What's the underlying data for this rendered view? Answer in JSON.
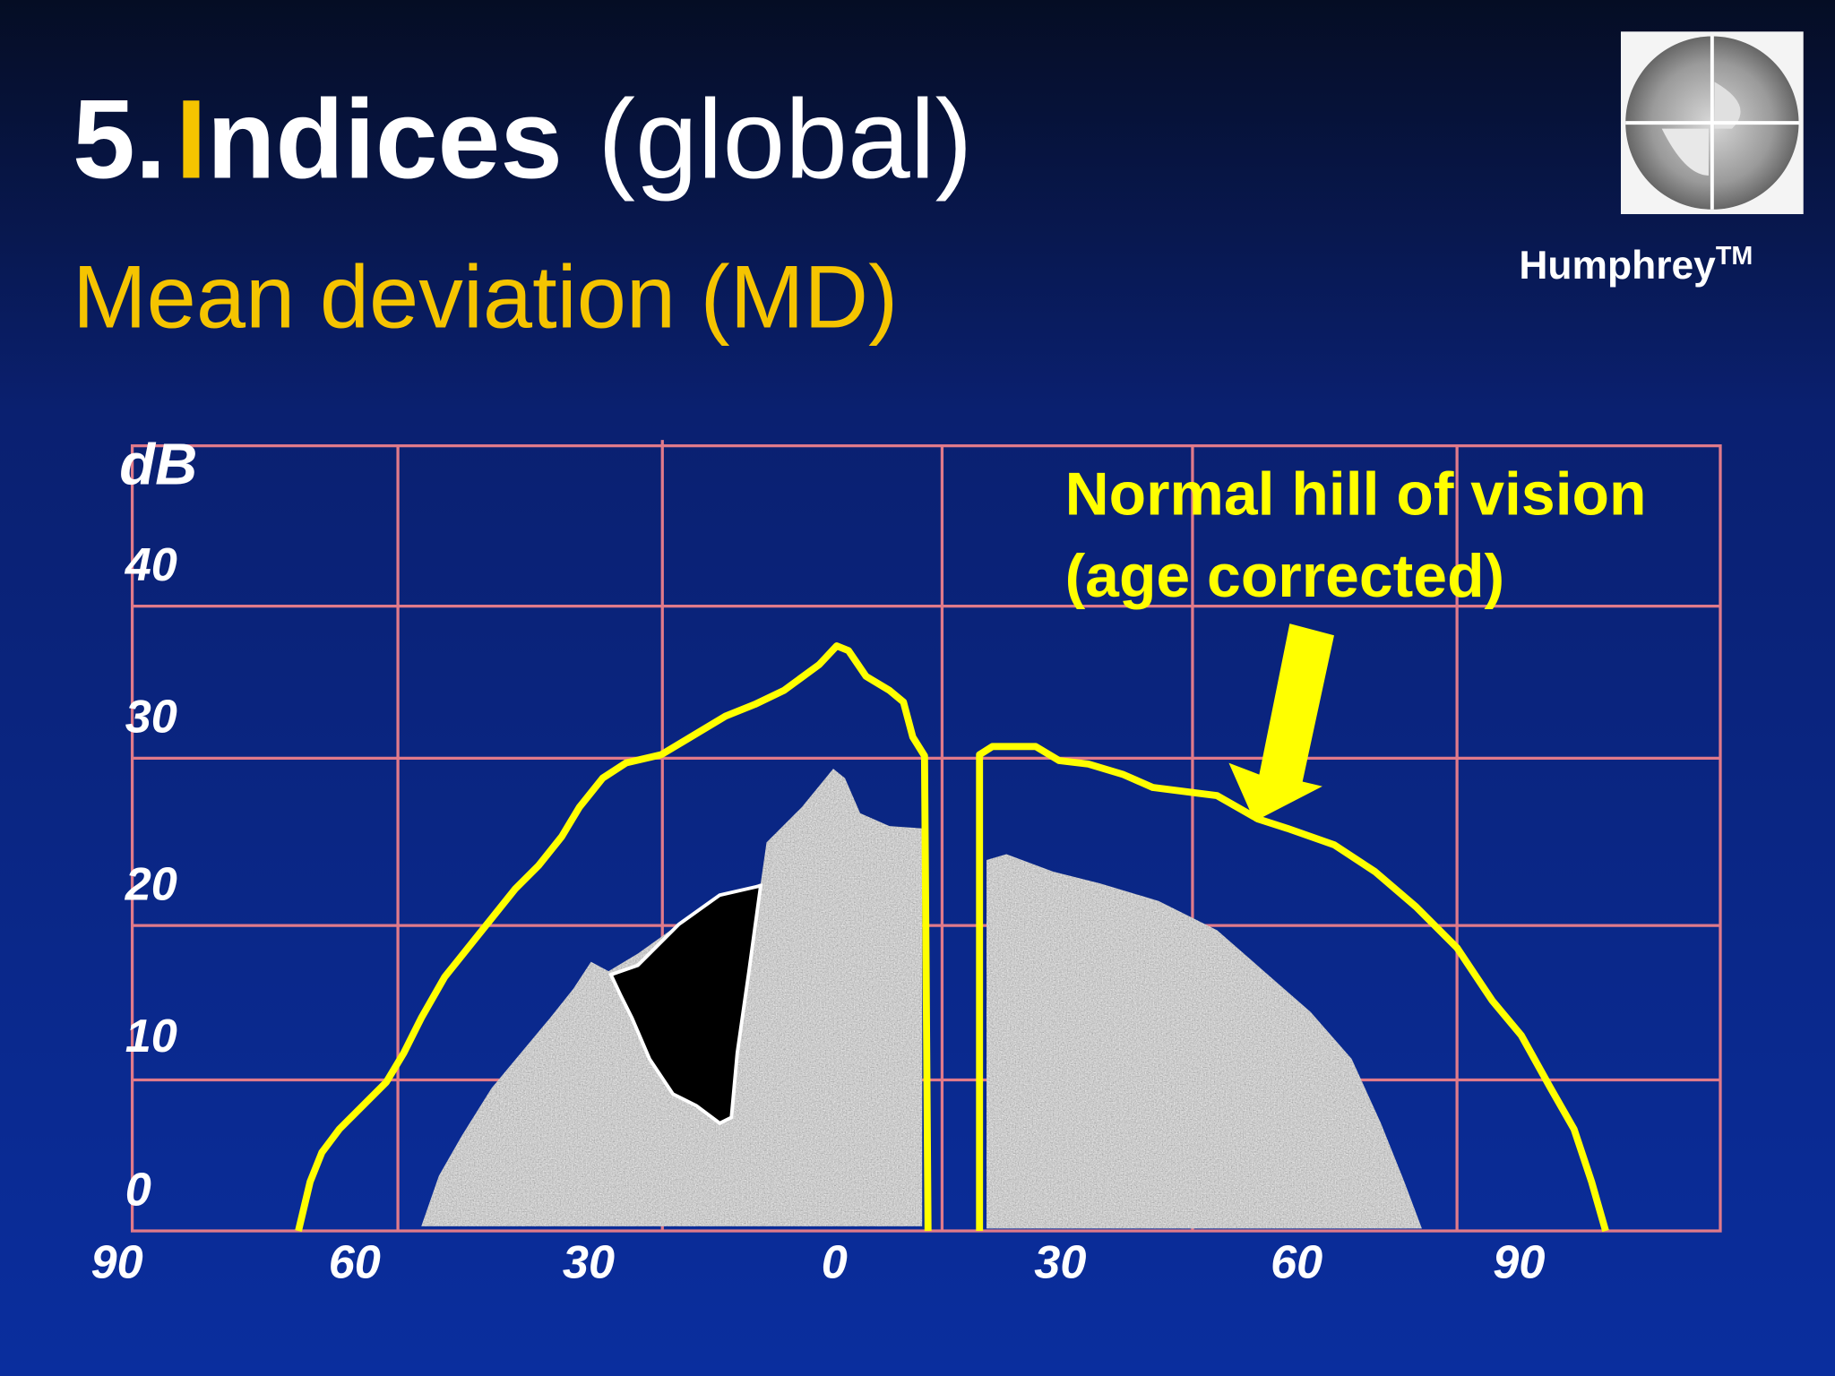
{
  "slide": {
    "title": {
      "number": "5.",
      "initial": "I",
      "rest": "ndices",
      "qualifier": "(global)"
    },
    "subtitle": "Mean deviation (MD)",
    "logo_caption": {
      "name": "Humphrey",
      "mark": "TM"
    },
    "chart": {
      "y_axis_label": "dB",
      "y_tick_labels": [
        "40",
        "30",
        "20",
        "10",
        "0"
      ],
      "x_tick_labels": [
        "90",
        "60",
        "30",
        "0",
        "30",
        "60",
        "90"
      ],
      "annotation": [
        "Normal hill of vision",
        "(age corrected)"
      ]
    }
  }
}
